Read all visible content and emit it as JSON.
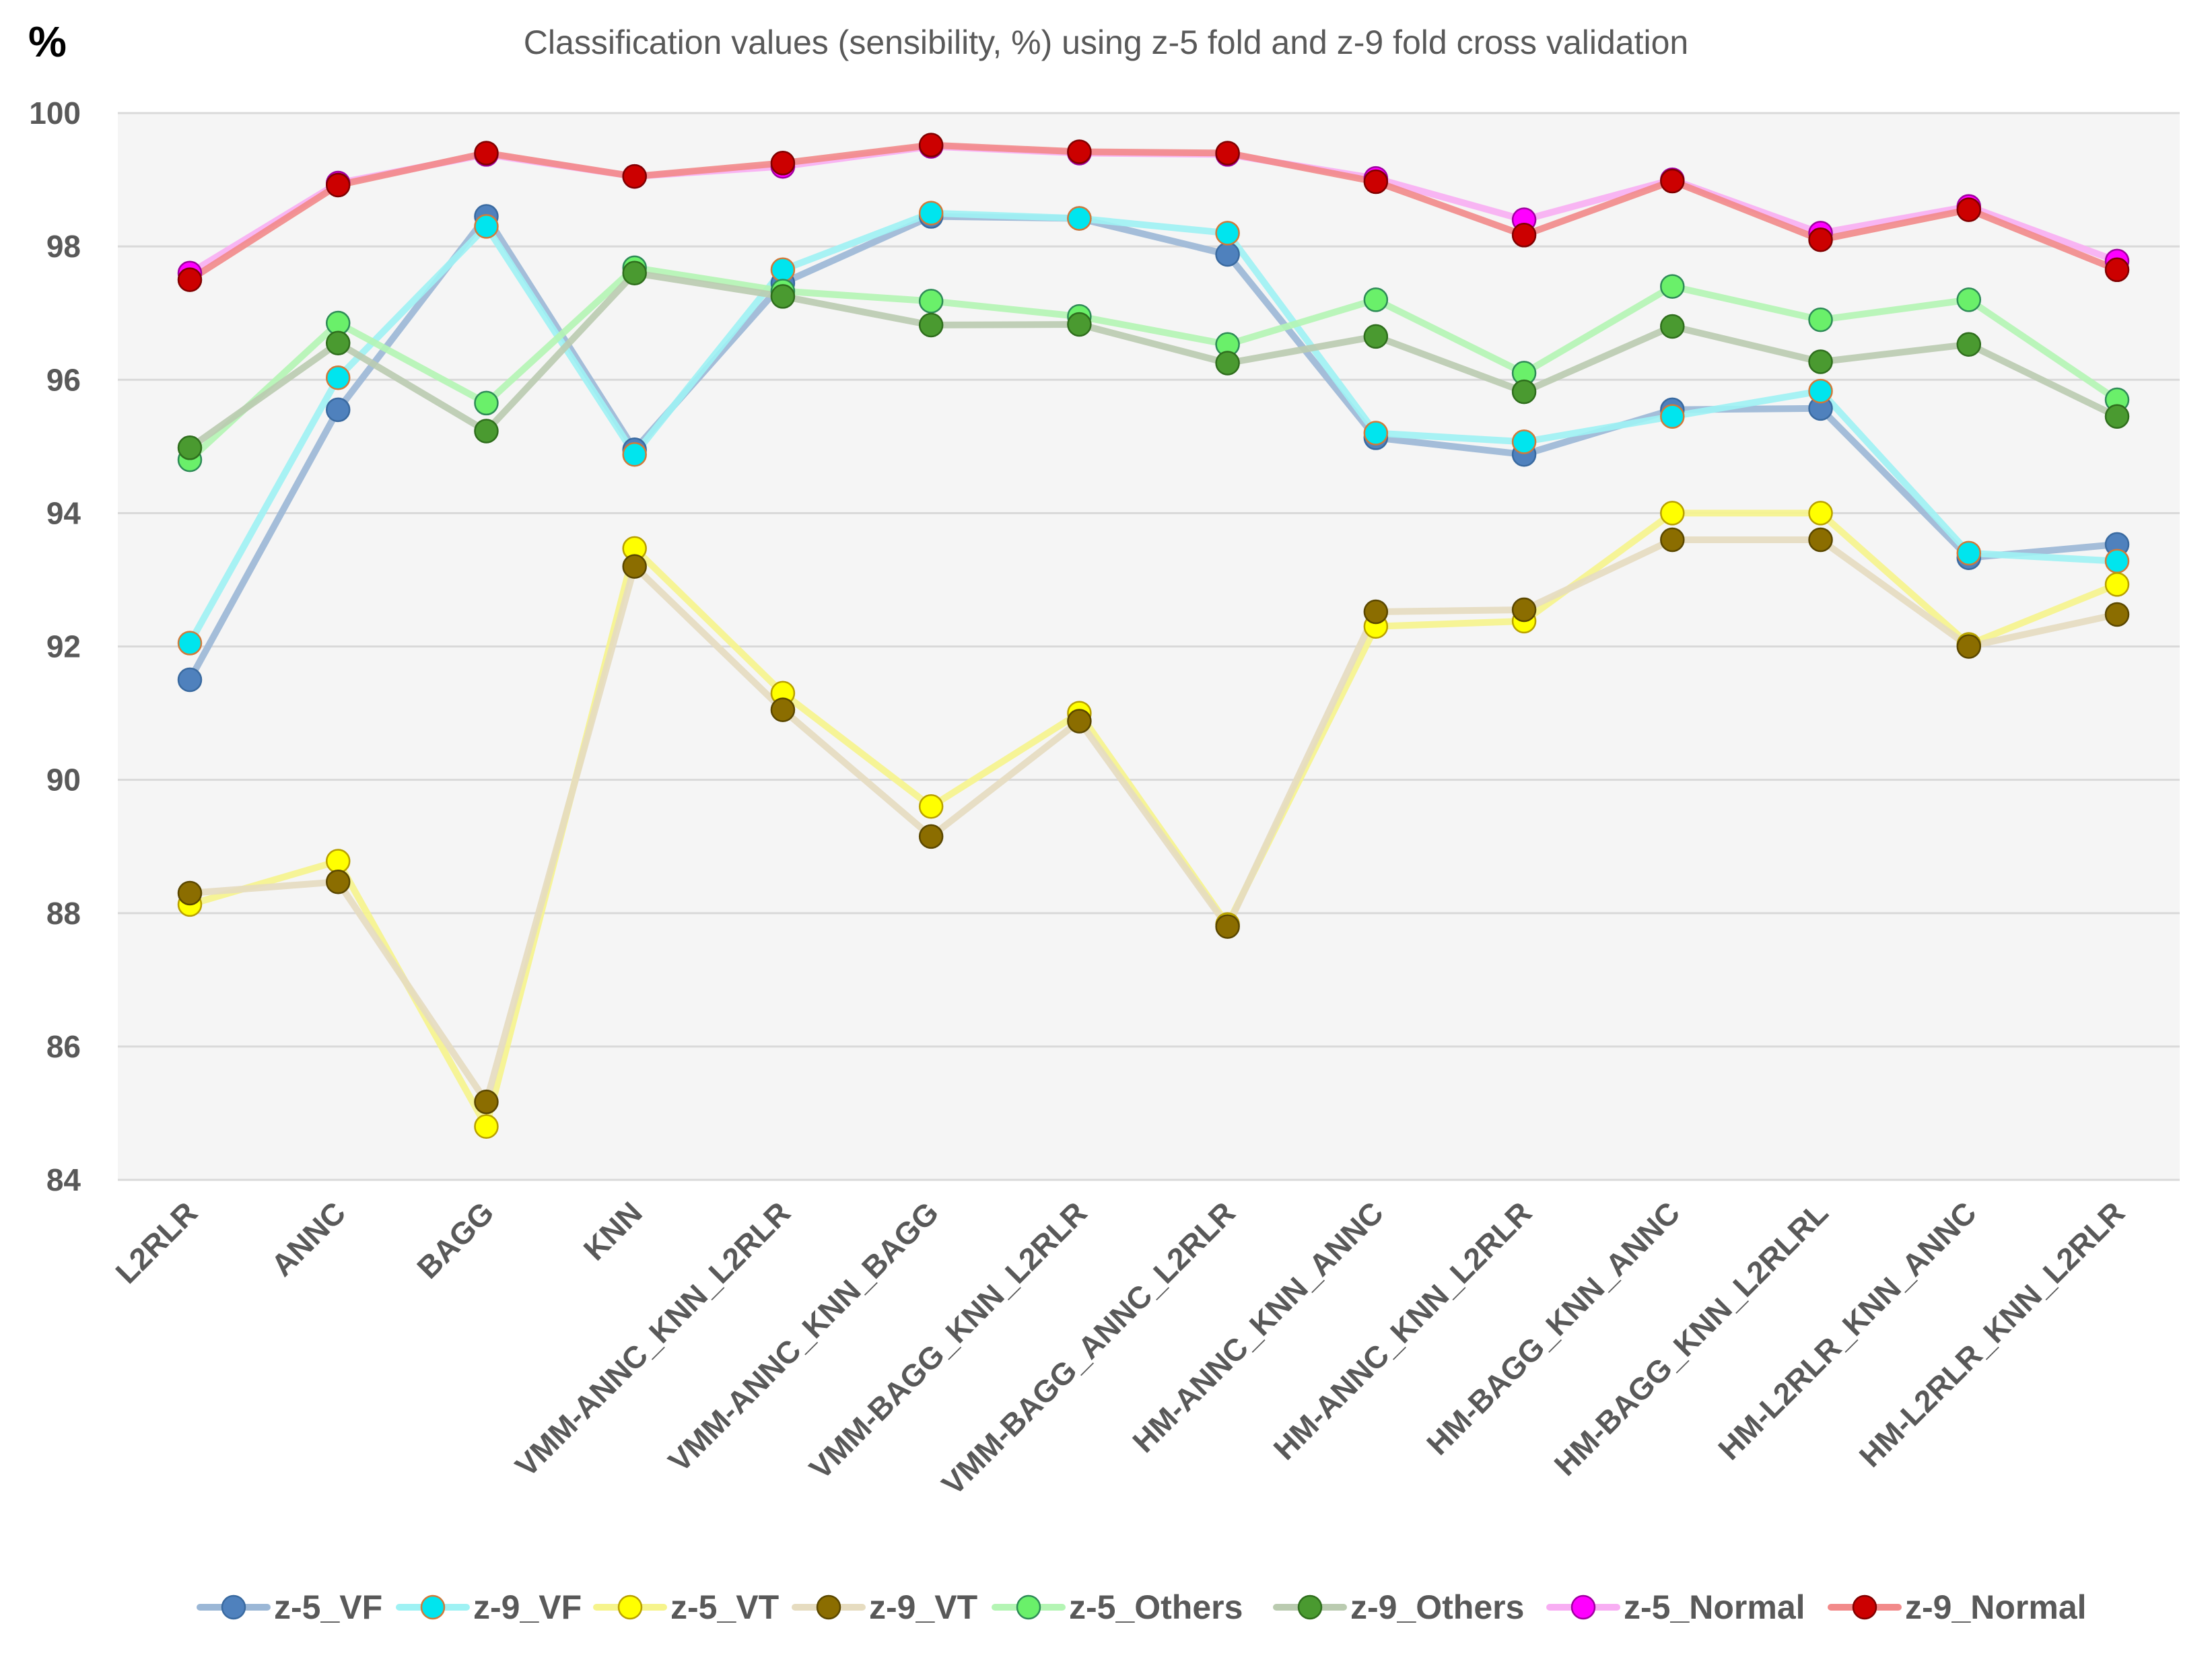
{
  "chart_data": {
    "type": "line",
    "title": "Classification values (sensibility, %) using z-5 fold and z-9 fold cross validation",
    "ylabel": "%",
    "xlabel": "",
    "ylim": [
      84,
      100
    ],
    "yticks": [
      84,
      86,
      88,
      90,
      92,
      94,
      96,
      98,
      100
    ],
    "grid": true,
    "legend_position": "bottom",
    "categories": [
      "L2RLR",
      "ANNC",
      "BAGG",
      "KNN",
      "VMM-ANNC_KNN_L2RLR",
      "VMM-ANNC_KNN_BAGG",
      "VMM-BAGG_KNN_L2RLR",
      "VMM-BAGG_ANNC_L2RLR",
      "HM-ANNC_KNN_ANNC",
      "HM-ANNC_KNN_L2RLR",
      "HM-BAGG_KNN_ANNC",
      "HM-BAGG_KNN_L2RLRL",
      "HM-L2RLR_KNN_ANNC",
      "HM-L2RLR_KNN_L2RLR"
    ],
    "series": [
      {
        "name": "z-5_VF",
        "line_color": "#9bb7d6",
        "marker_fill": "#4f81bd",
        "marker_stroke": "#3a6aa0",
        "values": [
          91.5,
          95.55,
          98.45,
          94.95,
          97.45,
          98.45,
          98.42,
          97.88,
          95.13,
          94.88,
          95.55,
          95.57,
          93.33,
          93.53
        ]
      },
      {
        "name": "z-9_VF",
        "line_color": "#9ff2f4",
        "marker_fill": "#00e5ee",
        "marker_stroke": "#d07a3a",
        "values": [
          92.05,
          96.03,
          98.3,
          94.88,
          97.65,
          98.5,
          98.42,
          98.2,
          95.2,
          95.07,
          95.45,
          95.83,
          93.4,
          93.28
        ]
      },
      {
        "name": "z-5_VT",
        "line_color": "#f6f48c",
        "marker_fill": "#ffff00",
        "marker_stroke": "#b8a000",
        "values": [
          88.13,
          88.78,
          84.8,
          93.47,
          91.3,
          89.6,
          91.0,
          87.83,
          92.3,
          92.38,
          94.0,
          94.0,
          92.03,
          92.93
        ]
      },
      {
        "name": "z-9_VT",
        "line_color": "#e6dcc0",
        "marker_fill": "#8b6d00",
        "marker_stroke": "#5a4700",
        "values": [
          88.3,
          88.47,
          85.17,
          93.2,
          91.05,
          89.15,
          90.88,
          87.8,
          92.52,
          92.55,
          93.6,
          93.6,
          92.0,
          92.48
        ]
      },
      {
        "name": "z-5_Others",
        "line_color": "#b4f5b4",
        "marker_fill": "#6af06a",
        "marker_stroke": "#2e8b57",
        "values": [
          94.8,
          96.85,
          95.65,
          97.68,
          97.33,
          97.18,
          96.95,
          96.53,
          97.2,
          96.1,
          97.4,
          96.9,
          97.2,
          95.7
        ]
      },
      {
        "name": "z-9_Others",
        "line_color": "#bacbb0",
        "marker_fill": "#4a9a30",
        "marker_stroke": "#2f6e1d",
        "values": [
          94.98,
          96.55,
          95.23,
          97.6,
          97.25,
          96.82,
          96.83,
          96.25,
          96.65,
          95.82,
          96.8,
          96.27,
          96.53,
          95.45
        ]
      },
      {
        "name": "z-5_Normal",
        "line_color": "#f8aef3",
        "marker_fill": "#ff00ff",
        "marker_stroke": "#a000a0",
        "values": [
          97.6,
          98.95,
          99.38,
          99.05,
          99.2,
          99.5,
          99.4,
          99.38,
          99.02,
          98.4,
          99.0,
          98.2,
          98.6,
          97.78
        ]
      },
      {
        "name": "z-9_Normal",
        "line_color": "#f28a8a",
        "marker_fill": "#cc0000",
        "marker_stroke": "#800000",
        "values": [
          97.5,
          98.92,
          99.4,
          99.05,
          99.25,
          99.52,
          99.42,
          99.4,
          98.97,
          98.17,
          98.98,
          98.1,
          98.55,
          97.65
        ]
      }
    ]
  }
}
